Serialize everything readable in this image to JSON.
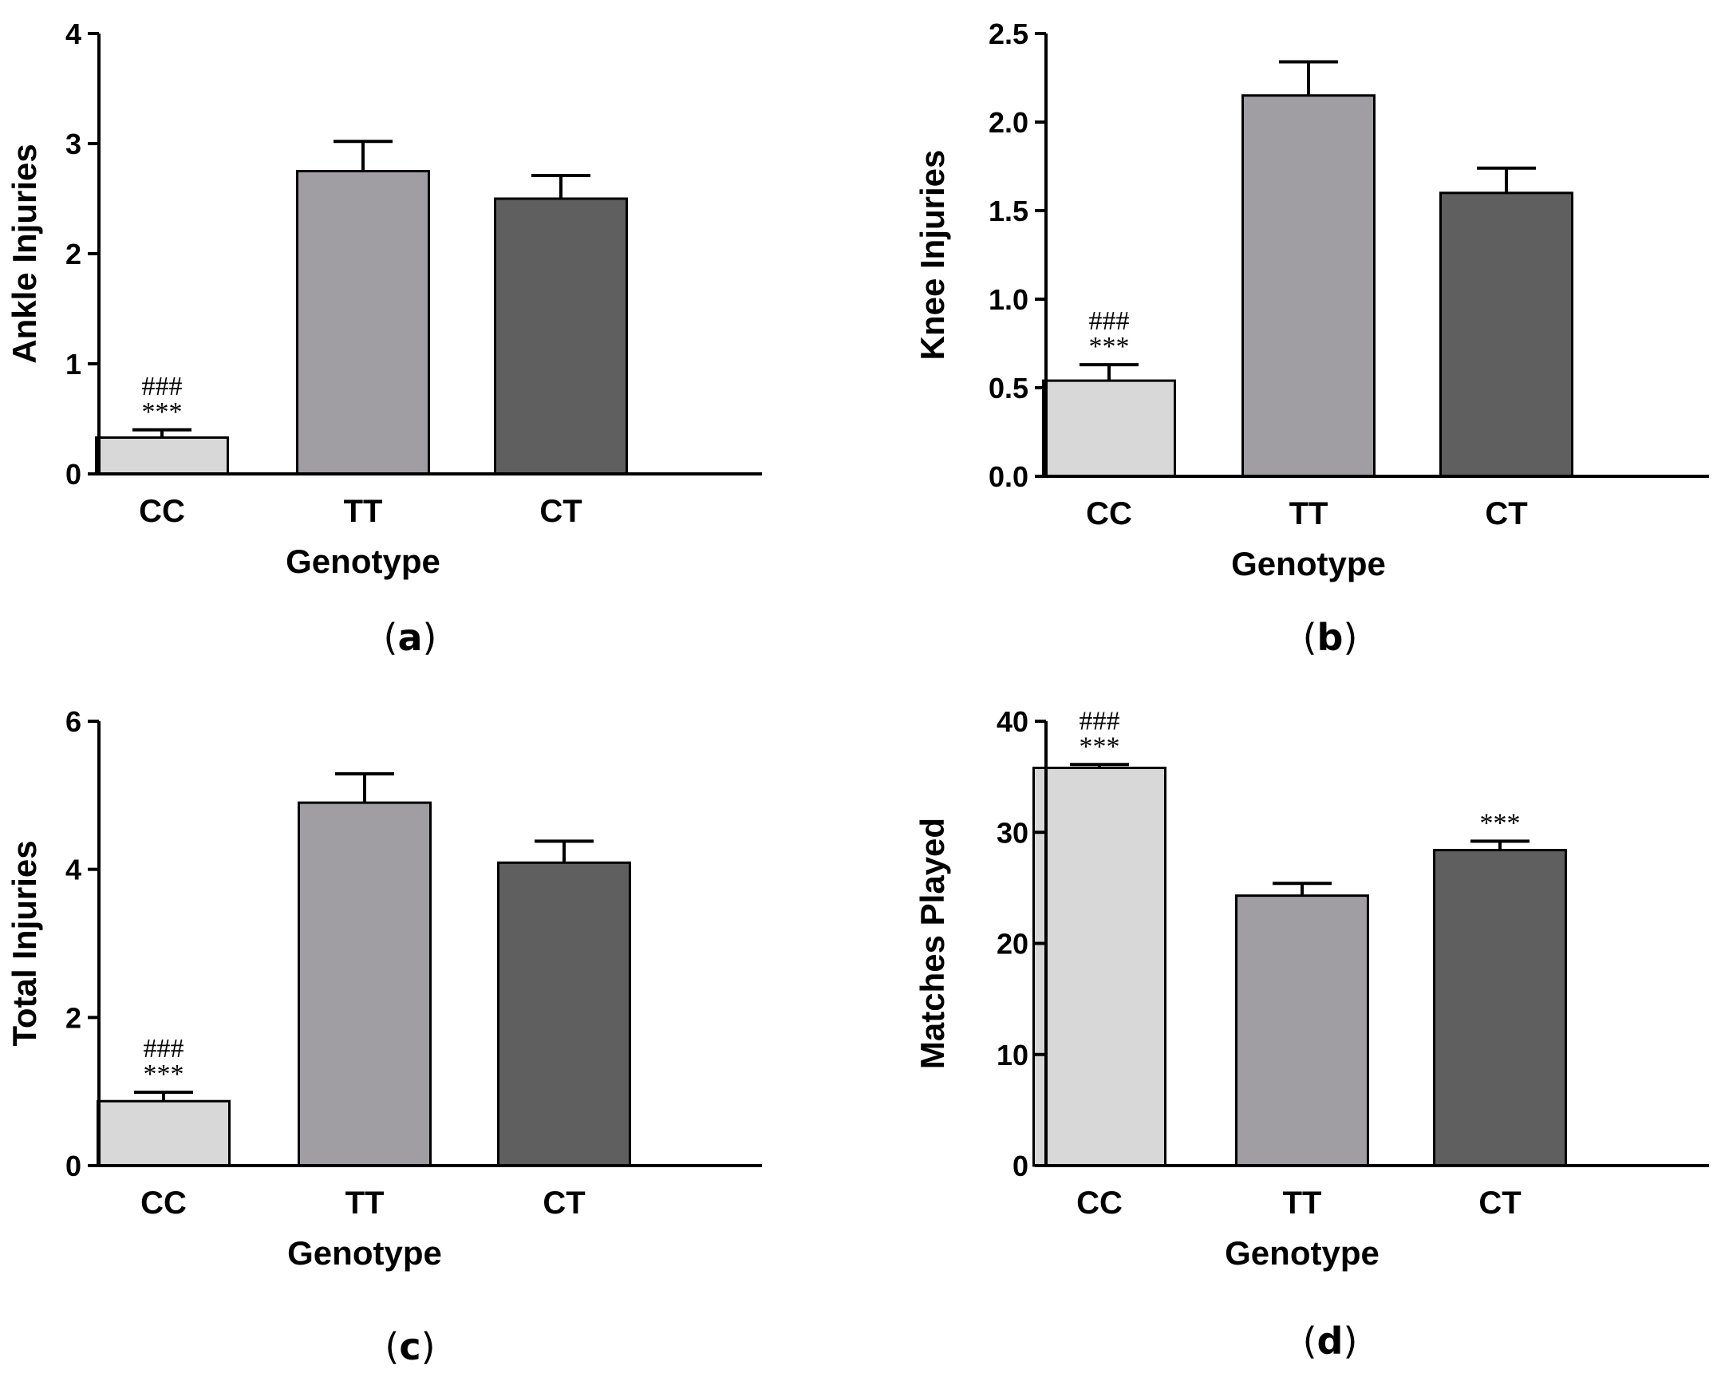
{
  "chart_data": [
    {
      "type": "bar",
      "panel": "a",
      "categories": [
        "CC",
        "TT",
        "CT"
      ],
      "values": [
        0.33,
        2.75,
        2.5
      ],
      "errors": [
        0.07,
        0.27,
        0.21
      ],
      "colors": [
        "#d8d8d8",
        "#a09da3",
        "#5f5f5f"
      ],
      "annotations": [
        [
          "###",
          "***"
        ],
        [],
        []
      ],
      "xlabel": "Genotype",
      "ylabel": "Ankle Injuries",
      "ylim": [
        0,
        4
      ],
      "yticks": [
        0,
        1,
        2,
        3,
        4
      ],
      "ytick_labels": [
        "0",
        "1",
        "2",
        "3",
        "4"
      ]
    },
    {
      "type": "bar",
      "panel": "b",
      "categories": [
        "CC",
        "TT",
        "CT"
      ],
      "values": [
        0.54,
        2.15,
        1.6
      ],
      "errors": [
        0.09,
        0.19,
        0.14
      ],
      "colors": [
        "#d8d8d8",
        "#a09da3",
        "#5f5f5f"
      ],
      "annotations": [
        [
          "###",
          "***"
        ],
        [],
        []
      ],
      "xlabel": "Genotype",
      "ylabel": "Knee Injuries",
      "ylim": [
        0,
        2.5
      ],
      "yticks": [
        0,
        0.5,
        1.0,
        1.5,
        2.0,
        2.5
      ],
      "ytick_labels": [
        "0.0",
        "0.5",
        "1.0",
        "1.5",
        "2.0",
        "2.5"
      ]
    },
    {
      "type": "bar",
      "panel": "c",
      "categories": [
        "CC",
        "TT",
        "CT"
      ],
      "values": [
        0.87,
        4.9,
        4.09
      ],
      "errors": [
        0.12,
        0.39,
        0.29
      ],
      "colors": [
        "#d8d8d8",
        "#a09da3",
        "#5f5f5f"
      ],
      "annotations": [
        [
          "###",
          "***"
        ],
        [],
        []
      ],
      "xlabel": "Genotype",
      "ylabel": "Total Injuries",
      "ylim": [
        0,
        6
      ],
      "yticks": [
        0,
        2,
        4,
        6
      ],
      "ytick_labels": [
        "0",
        "2",
        "4",
        "6"
      ]
    },
    {
      "type": "bar",
      "panel": "d",
      "categories": [
        "CC",
        "TT",
        "CT"
      ],
      "values": [
        35.8,
        24.3,
        28.4
      ],
      "errors": [
        0.3,
        1.1,
        0.8
      ],
      "colors": [
        "#d8d8d8",
        "#a09da3",
        "#5f5f5f"
      ],
      "annotations": [
        [
          "###",
          "***"
        ],
        [],
        [
          "***"
        ]
      ],
      "xlabel": "Genotype",
      "ylabel": "Matches Played",
      "ylim": [
        0,
        40
      ],
      "yticks": [
        0,
        10,
        20,
        30,
        40
      ],
      "ytick_labels": [
        "0",
        "10",
        "20",
        "30",
        "40"
      ]
    }
  ]
}
